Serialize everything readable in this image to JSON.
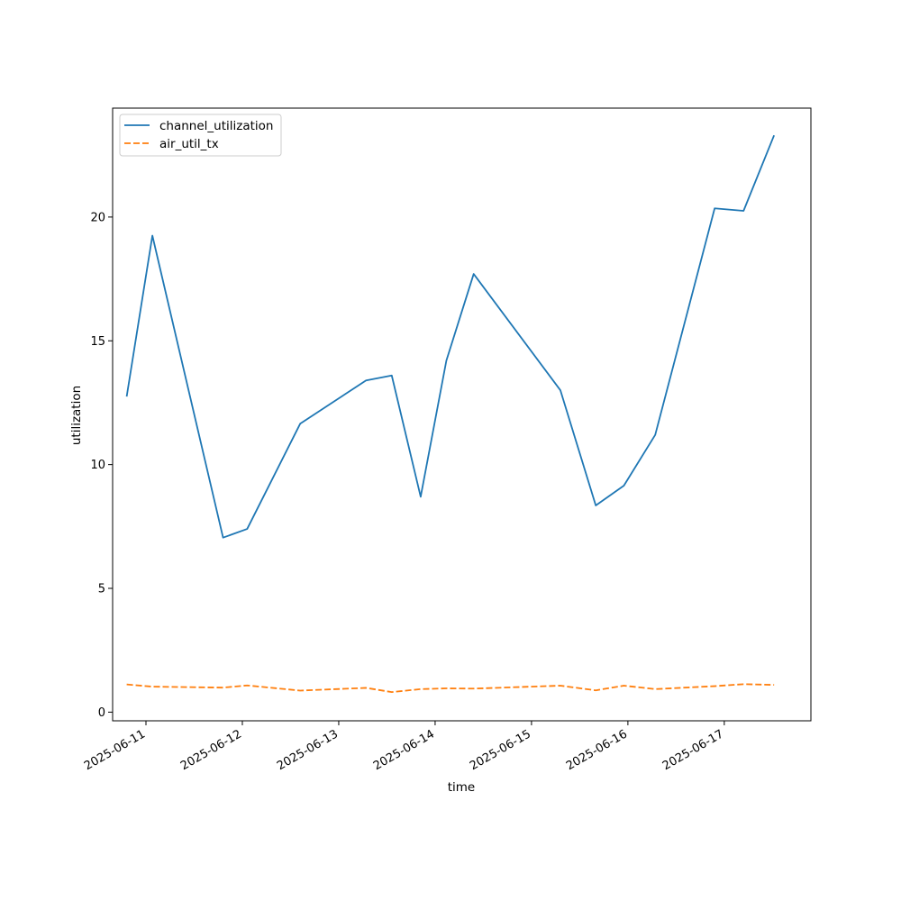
{
  "chart_data": {
    "type": "line",
    "title": "",
    "xlabel": "time",
    "ylabel": "utilization",
    "x_tick_labels": [
      "2025-06-11",
      "2025-06-12",
      "2025-06-13",
      "2025-06-14",
      "2025-06-15",
      "2025-06-16",
      "2025-06-17"
    ],
    "y_ticks": [
      0,
      5,
      10,
      15,
      20
    ],
    "xlim": [
      "2025-06-10T15:42",
      "2025-06-17T21:34"
    ],
    "ylim": [
      -0.35,
      24.4
    ],
    "grid": false,
    "legend_position": "upper-left",
    "series": [
      {
        "name": "channel_utilization",
        "color": "#1f77b4",
        "style": "solid",
        "points": [
          {
            "x": "2025-06-10T19:12",
            "y": 12.75
          },
          {
            "x": "2025-06-11T01:36",
            "y": 19.25
          },
          {
            "x": "2025-06-11T19:12",
            "y": 7.05
          },
          {
            "x": "2025-06-12T01:12",
            "y": 7.4
          },
          {
            "x": "2025-06-12T14:24",
            "y": 11.65
          },
          {
            "x": "2025-06-13T06:48",
            "y": 13.4
          },
          {
            "x": "2025-06-13T13:12",
            "y": 13.6
          },
          {
            "x": "2025-06-13T20:24",
            "y": 8.7
          },
          {
            "x": "2025-06-14T02:48",
            "y": 14.2
          },
          {
            "x": "2025-06-14T09:36",
            "y": 17.7
          },
          {
            "x": "2025-06-15T07:12",
            "y": 13.0
          },
          {
            "x": "2025-06-15T16:00",
            "y": 8.35
          },
          {
            "x": "2025-06-15T23:00",
            "y": 9.15
          },
          {
            "x": "2025-06-16T06:48",
            "y": 11.2
          },
          {
            "x": "2025-06-16T21:36",
            "y": 20.35
          },
          {
            "x": "2025-06-17T04:48",
            "y": 20.25
          },
          {
            "x": "2025-06-17T12:24",
            "y": 23.3
          }
        ]
      },
      {
        "name": "air_util_tx",
        "color": "#ff7f0e",
        "style": "dashed",
        "points": [
          {
            "x": "2025-06-10T19:12",
            "y": 1.12
          },
          {
            "x": "2025-06-11T01:36",
            "y": 1.03
          },
          {
            "x": "2025-06-11T19:12",
            "y": 0.99
          },
          {
            "x": "2025-06-12T01:12",
            "y": 1.08
          },
          {
            "x": "2025-06-12T14:24",
            "y": 0.87
          },
          {
            "x": "2025-06-13T06:48",
            "y": 0.98
          },
          {
            "x": "2025-06-13T13:12",
            "y": 0.81
          },
          {
            "x": "2025-06-13T20:24",
            "y": 0.93
          },
          {
            "x": "2025-06-14T02:48",
            "y": 0.96
          },
          {
            "x": "2025-06-14T09:36",
            "y": 0.95
          },
          {
            "x": "2025-06-15T07:12",
            "y": 1.07
          },
          {
            "x": "2025-06-15T16:00",
            "y": 0.88
          },
          {
            "x": "2025-06-15T23:00",
            "y": 1.07
          },
          {
            "x": "2025-06-16T06:48",
            "y": 0.93
          },
          {
            "x": "2025-06-16T21:36",
            "y": 1.05
          },
          {
            "x": "2025-06-17T04:48",
            "y": 1.13
          },
          {
            "x": "2025-06-17T12:24",
            "y": 1.1
          }
        ]
      }
    ]
  }
}
